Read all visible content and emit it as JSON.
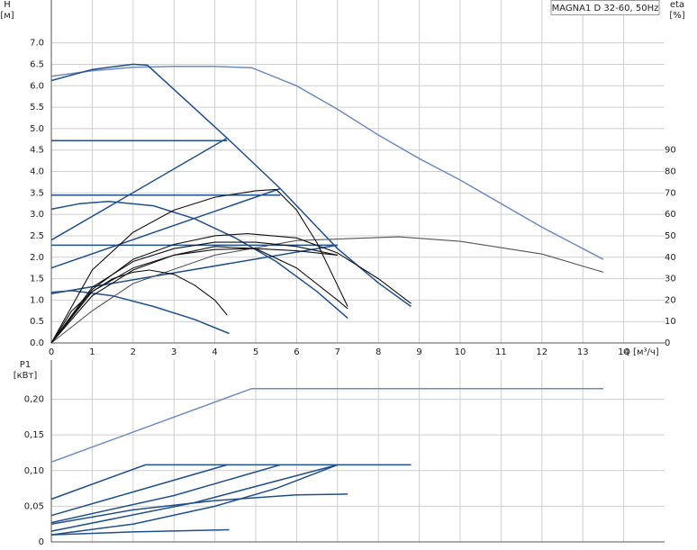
{
  "chart_data": [
    {
      "type": "line",
      "title": "MAGNA1 D 32-60, 50Hz",
      "ylabel": "H",
      "yunit": "[м]",
      "y2label": "eta",
      "y2unit": "[%]",
      "xlabel": "Q [м³/ч]",
      "xlim": [
        0,
        15
      ],
      "xticks": [
        0,
        1,
        2,
        3,
        4,
        5,
        6,
        7,
        8,
        9,
        10,
        11,
        12,
        13,
        14
      ],
      "ylim": [
        0,
        8
      ],
      "yticks": [
        {
          "value": 0,
          "label": "0.0"
        },
        {
          "value": 0.5,
          "label": "0.5"
        },
        {
          "value": 1,
          "label": "1.0"
        },
        {
          "value": 1.5,
          "label": "1.5"
        },
        {
          "value": 2,
          "label": "2.0"
        },
        {
          "value": 2.5,
          "label": "2.5"
        },
        {
          "value": 3,
          "label": "3.0"
        },
        {
          "value": 3.5,
          "label": "3.5"
        },
        {
          "value": 4,
          "label": "4.0"
        },
        {
          "value": 4.5,
          "label": "4.5"
        },
        {
          "value": 5,
          "label": "5.0"
        },
        {
          "value": 5.5,
          "label": "5.5"
        },
        {
          "value": 6,
          "label": "6.0"
        },
        {
          "value": 6.5,
          "label": "6.5"
        },
        {
          "value": 7,
          "label": "7.0"
        }
      ],
      "y2lim": [
        0,
        160
      ],
      "y2ticks": [
        0,
        10,
        20,
        30,
        40,
        50,
        60,
        70,
        80,
        90
      ],
      "grid": true,
      "series": [
        {
          "color": "#6f8cbf",
          "x": [
            0,
            1,
            2,
            3,
            4,
            4.9,
            6,
            7,
            8,
            9,
            10,
            11,
            12,
            13,
            13.5
          ],
          "values": [
            6.22,
            6.35,
            6.43,
            6.45,
            6.45,
            6.42,
            6.0,
            5.45,
            4.85,
            4.3,
            3.8,
            3.25,
            2.7,
            2.2,
            1.95
          ]
        },
        {
          "color": "#1f4f8f",
          "x": [
            0,
            1,
            2,
            2.35,
            4.3,
            5.6,
            7,
            8,
            8.8
          ],
          "values": [
            6.12,
            6.38,
            6.5,
            6.48,
            4.78,
            3.6,
            2.2,
            1.4,
            0.85
          ]
        },
        {
          "color": "#1f4f8f",
          "x": [
            0,
            4.3
          ],
          "values": [
            4.72,
            4.72
          ]
        },
        {
          "color": "#1f4f8f",
          "x": [
            0,
            5.6
          ],
          "values": [
            3.45,
            3.45
          ]
        },
        {
          "color": "#1f4f8f",
          "x": [
            0,
            7
          ],
          "values": [
            2.28,
            2.28
          ]
        },
        {
          "color": "#1f4f8f",
          "x": [
            0,
            4.3
          ],
          "values": [
            2.4,
            4.78
          ]
        },
        {
          "color": "#1f4f8f",
          "x": [
            0,
            5.6
          ],
          "values": [
            1.75,
            3.6
          ]
        },
        {
          "color": "#1f4f8f",
          "x": [
            0,
            7
          ],
          "values": [
            1.15,
            2.28
          ]
        },
        {
          "color": "#1f4f8f",
          "x": [
            0,
            0.7,
            1.4,
            2.5,
            3.5,
            4.5,
            5.5,
            6.5,
            7.25
          ],
          "values": [
            3.12,
            3.25,
            3.3,
            3.2,
            2.9,
            2.45,
            1.9,
            1.2,
            0.58
          ]
        },
        {
          "color": "#1f4f8f",
          "x": [
            0,
            0.5,
            1.5,
            2.5,
            3.5,
            4.35
          ],
          "values": [
            1.18,
            1.22,
            1.1,
            0.85,
            0.55,
            0.22
          ]
        },
        {
          "color": "#555555",
          "axis": "y2",
          "x": [
            0,
            1,
            2,
            4,
            6,
            8.5,
            10,
            12,
            13.5
          ],
          "values": [
            0,
            15,
            27.7,
            41,
            47.8,
            49.5,
            47.4,
            41.5,
            33
          ]
        },
        {
          "color": "#111111",
          "axis": "y2",
          "x": [
            0,
            1,
            2,
            3,
            4,
            5,
            5.5,
            6,
            6.5,
            7.25
          ],
          "values": [
            0,
            34,
            51.6,
            62,
            68,
            71,
            71.6,
            62,
            46.6,
            17
          ]
        },
        {
          "color": "#111111",
          "axis": "y2",
          "x": [
            0,
            1,
            2,
            3,
            4,
            4.8,
            6,
            7,
            8,
            8.8
          ],
          "values": [
            0,
            25,
            39,
            46,
            50,
            51,
            49,
            42,
            30,
            18.4
          ]
        },
        {
          "color": "#111111",
          "axis": "y2",
          "x": [
            0,
            1,
            2,
            3,
            4,
            5,
            6,
            7
          ],
          "values": [
            0,
            26,
            38,
            44,
            47,
            47,
            45,
            41
          ]
        },
        {
          "color": "#111111",
          "axis": "y2",
          "x": [
            0,
            1,
            2,
            3,
            4,
            5,
            6,
            7
          ],
          "values": [
            0,
            24,
            35,
            41,
            43.6,
            44,
            43,
            41
          ]
        },
        {
          "color": "#111111",
          "axis": "y2",
          "x": [
            0,
            1,
            2,
            3,
            4,
            5,
            6,
            7,
            7.25
          ],
          "values": [
            0,
            22,
            34,
            41,
            45,
            44,
            35,
            20,
            16
          ]
        },
        {
          "color": "#111111",
          "axis": "y2",
          "x": [
            0,
            0.5,
            1,
            1.5,
            2,
            2.4,
            3,
            3.5,
            4,
            4.3
          ],
          "values": [
            0,
            15,
            24,
            30,
            33,
            34,
            32,
            27,
            20,
            13
          ]
        }
      ]
    },
    {
      "type": "line",
      "ylabel": "P1",
      "yunit": "[кВт]",
      "xlim": [
        0,
        15
      ],
      "xticks": [
        0,
        1,
        2,
        3,
        4,
        5,
        6,
        7,
        8,
        9,
        10,
        11,
        12,
        13,
        14
      ],
      "xticklabels": false,
      "ylim": [
        0,
        0.255
      ],
      "yticks": [
        0,
        {
          "value": 0.05,
          "label": "0,05"
        },
        {
          "value": 0.1,
          "label": "0,10"
        },
        {
          "value": 0.15,
          "label": "0,15"
        },
        {
          "value": 0.2,
          "label": "0,20"
        }
      ],
      "grid": true,
      "series": [
        {
          "color": "#6f8cbf",
          "x": [
            0,
            4.9,
            11.2,
            13.5
          ],
          "values": [
            0.112,
            0.215,
            0.215,
            0.215
          ]
        },
        {
          "color": "#1f4f8f",
          "x": [
            0,
            2.3,
            8.8
          ],
          "values": [
            0.06,
            0.108,
            0.108
          ]
        },
        {
          "color": "#1f4f8f",
          "x": [
            0,
            2,
            4.3
          ],
          "values": [
            0.037,
            0.07,
            0.108
          ]
        },
        {
          "color": "#1f4f8f",
          "x": [
            0,
            3,
            5.6
          ],
          "values": [
            0.027,
            0.065,
            0.108
          ]
        },
        {
          "color": "#1f4f8f",
          "x": [
            0,
            3.5,
            7
          ],
          "values": [
            0.015,
            0.055,
            0.108
          ]
        },
        {
          "color": "#1f4f8f",
          "x": [
            0,
            2,
            4,
            5.5,
            7
          ],
          "values": [
            0.01,
            0.025,
            0.05,
            0.075,
            0.108
          ]
        },
        {
          "color": "#1f4f8f",
          "x": [
            0,
            2,
            4,
            6,
            7.25
          ],
          "values": [
            0.025,
            0.045,
            0.058,
            0.066,
            0.067
          ]
        },
        {
          "color": "#1f4f8f",
          "x": [
            0,
            2,
            4.35
          ],
          "values": [
            0.01,
            0.014,
            0.017
          ]
        }
      ]
    }
  ]
}
